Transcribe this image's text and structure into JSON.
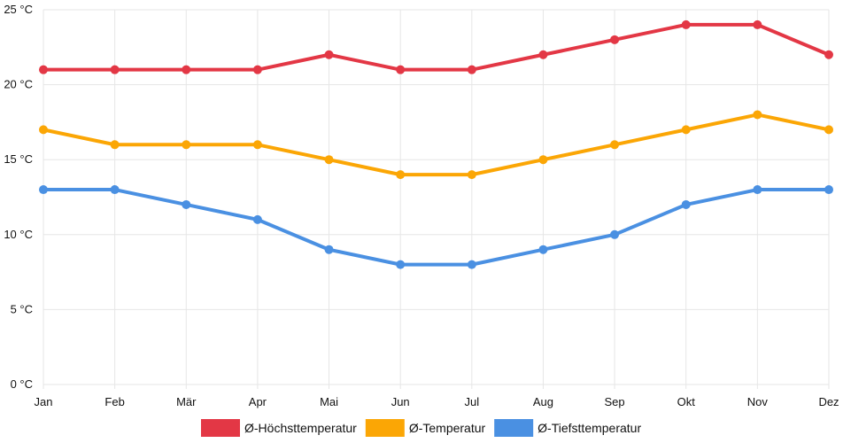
{
  "chart_data": {
    "type": "line",
    "categories": [
      "Jan",
      "Feb",
      "Mär",
      "Apr",
      "Mai",
      "Jun",
      "Jul",
      "Aug",
      "Sep",
      "Okt",
      "Nov",
      "Dez"
    ],
    "y_ticks": [
      "0 °C",
      "5 °C",
      "10 °C",
      "15 °C",
      "20 °C",
      "25 °C"
    ],
    "ylim": [
      0,
      25
    ],
    "grid": true,
    "legend_position": "bottom",
    "series": [
      {
        "name": "Ø-Höchsttemperatur",
        "color": "#e33745",
        "values": [
          21,
          21,
          21,
          21,
          22,
          21,
          21,
          22,
          23,
          24,
          24,
          22
        ]
      },
      {
        "name": "Ø-Temperatur",
        "color": "#fba605",
        "values": [
          17,
          16,
          16,
          16,
          15,
          14,
          14,
          15,
          16,
          17,
          18,
          17
        ]
      },
      {
        "name": "Ø-Tiefsttemperatur",
        "color": "#4a90e2",
        "values": [
          13,
          13,
          12,
          11,
          9,
          8,
          8,
          9,
          10,
          12,
          13,
          13
        ]
      }
    ]
  }
}
